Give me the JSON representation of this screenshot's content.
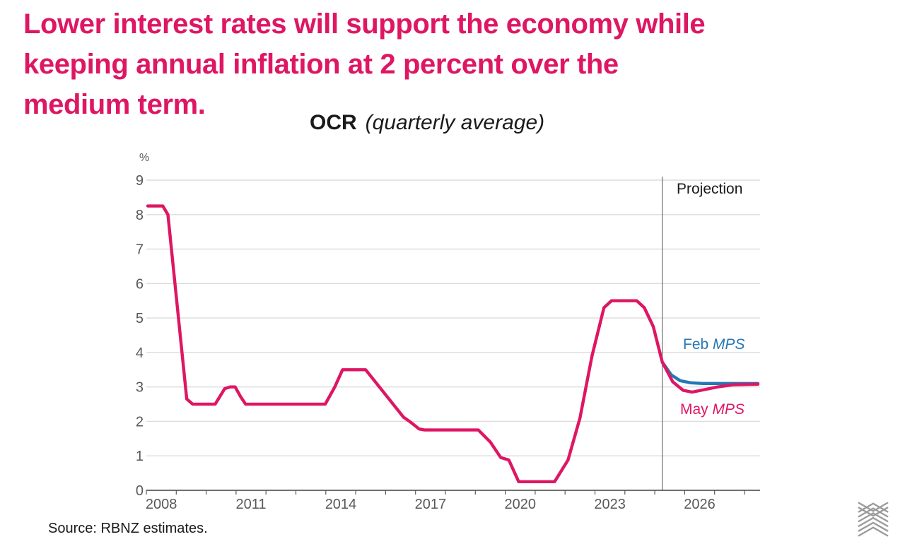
{
  "slide": {
    "title_lines": [
      "Lower interest rates will support the economy while",
      "keeping annual inflation at 2 percent over the",
      "medium term."
    ],
    "source_text": "Source: RBNZ estimates.",
    "logo_name": "rbnz-chevron-logo"
  },
  "colors": {
    "headline_pink": "#DE1663",
    "may_mps_pink": "#DE1663",
    "feb_mps_blue": "#2577B5",
    "axis_text_gray": "#595959",
    "gridline_gray": "#DCDCDC",
    "axis_line": "#404040",
    "projection_line_gray": "#6E6E6E",
    "text_dark": "#1A1A1A",
    "logo_gray": "#9B9B9B"
  },
  "chart_data": {
    "type": "line",
    "title": "OCR",
    "subtitle": "(quarterly average)",
    "y_axis_unit": "%",
    "ylim": [
      0,
      9
    ],
    "y_ticks": [
      0,
      1,
      2,
      3,
      4,
      5,
      6,
      7,
      8,
      9
    ],
    "x_tick_years_labeled": [
      "2008",
      "2011",
      "2014",
      "2017",
      "2020",
      "2023",
      "2026"
    ],
    "x_range": [
      2008,
      2028.6
    ],
    "x_minor_tick_every_years": 1,
    "grid": "horizontal",
    "legend_position": "inline-right",
    "projection": {
      "x": 2025.25,
      "label": "Projection"
    },
    "series": [
      {
        "name_prefix": "Feb",
        "name_italic": "MPS",
        "name": "Feb MPS",
        "color": "#2577B5",
        "points": [
          [
            2025.25,
            3.72
          ],
          [
            2025.55,
            3.35
          ],
          [
            2025.85,
            3.18
          ],
          [
            2026.2,
            3.12
          ],
          [
            2026.6,
            3.1
          ],
          [
            2027.5,
            3.1
          ],
          [
            2028.45,
            3.1
          ]
        ]
      },
      {
        "name_prefix": "May",
        "name_italic": "MPS",
        "name": "May MPS",
        "color": "#DE1663",
        "points": [
          [
            2008.05,
            8.25
          ],
          [
            2008.55,
            8.25
          ],
          [
            2008.72,
            8.0
          ],
          [
            2009.35,
            2.65
          ],
          [
            2009.55,
            2.5
          ],
          [
            2010.3,
            2.5
          ],
          [
            2010.62,
            2.95
          ],
          [
            2010.8,
            3.0
          ],
          [
            2010.97,
            3.0
          ],
          [
            2011.15,
            2.72
          ],
          [
            2011.32,
            2.5
          ],
          [
            2013.98,
            2.5
          ],
          [
            2014.3,
            3.0
          ],
          [
            2014.56,
            3.5
          ],
          [
            2015.33,
            3.5
          ],
          [
            2016.6,
            2.12
          ],
          [
            2016.8,
            2.0
          ],
          [
            2017.12,
            1.78
          ],
          [
            2017.3,
            1.75
          ],
          [
            2019.1,
            1.75
          ],
          [
            2019.5,
            1.4
          ],
          [
            2019.85,
            0.95
          ],
          [
            2020.12,
            0.88
          ],
          [
            2020.45,
            0.25
          ],
          [
            2021.65,
            0.25
          ],
          [
            2022.1,
            0.88
          ],
          [
            2022.5,
            2.1
          ],
          [
            2022.9,
            3.9
          ],
          [
            2023.3,
            5.3
          ],
          [
            2023.55,
            5.5
          ],
          [
            2024.4,
            5.5
          ],
          [
            2024.65,
            5.3
          ],
          [
            2024.95,
            4.75
          ],
          [
            2025.25,
            3.72
          ],
          [
            2025.6,
            3.15
          ],
          [
            2025.95,
            2.9
          ],
          [
            2026.25,
            2.85
          ],
          [
            2026.7,
            2.93
          ],
          [
            2027.1,
            3.0
          ],
          [
            2027.6,
            3.06
          ],
          [
            2028.45,
            3.08
          ]
        ]
      }
    ]
  }
}
